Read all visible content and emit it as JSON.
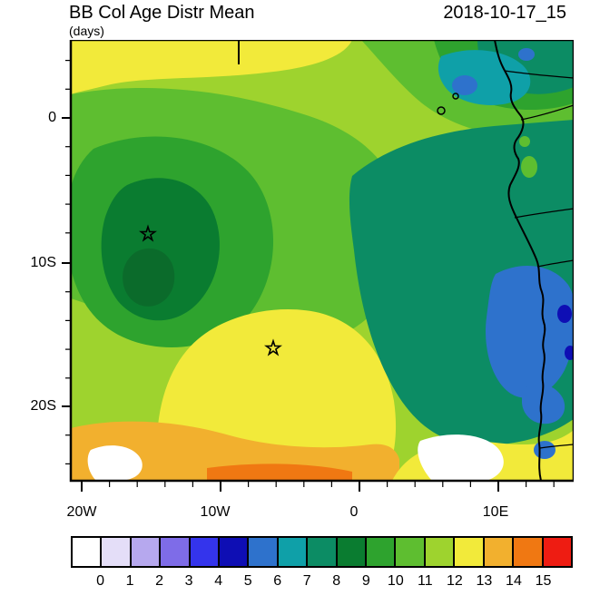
{
  "header": {
    "title": "BB Col Age Distr Mean",
    "units": "(days)",
    "date": "2018-10-17_15"
  },
  "axes": {
    "y_ticks": [
      "0",
      "10S",
      "20S"
    ],
    "x_ticks": [
      "20W",
      "10W",
      "0",
      "10E"
    ]
  },
  "colorbar": {
    "labels": [
      "0",
      "1",
      "2",
      "3",
      "4",
      "5",
      "6",
      "7",
      "8",
      "9",
      "10",
      "11",
      "12",
      "13",
      "14",
      "15"
    ],
    "colors": [
      "#FFFFFF",
      "#E4DEF8",
      "#B6A8EE",
      "#7E6CE8",
      "#3434EC",
      "#0E0EB4",
      "#2E72CC",
      "#0FA0A8",
      "#0C8C64",
      "#0A7C30",
      "#2EA32E",
      "#5EBE30",
      "#9ED32E",
      "#F2EA3A",
      "#F2B02E",
      "#F07812",
      "#EE1C12"
    ]
  },
  "map_colors": {
    "base_yellow_green": "#9ED32E",
    "green_mid": "#5EBE30",
    "green_deep": "#2EA32E",
    "dark_green": "#0A7C30",
    "dark_green_core": "#0B6B2B",
    "teal_green": "#0C8C64",
    "teal": "#0FA0A8",
    "yellow": "#F2EA3A",
    "gold": "#F2B02E",
    "orange": "#F07812",
    "blue_mid": "#2E72CC",
    "blue_dark": "#0E0EB4",
    "white_region": "#FFFFFF"
  },
  "chart_data": {
    "type": "filled_contour_map",
    "title": "BB Col Age Distr Mean",
    "units": "days",
    "timestamp": "2018-10-17_15",
    "x_axis": {
      "ticks": [
        "20W",
        "10W",
        "0",
        "10E"
      ],
      "minor_tick_interval_deg": 2
    },
    "y_axis": {
      "ticks": [
        "0",
        "10S",
        "20S"
      ],
      "minor_tick_interval_deg": 2
    },
    "domain": {
      "lon_range": [
        "about 21W",
        "about 16E"
      ],
      "lat_range": [
        "about 5N",
        "about 25S"
      ]
    },
    "contour_levels": [
      0,
      1,
      2,
      3,
      4,
      5,
      6,
      7,
      8,
      9,
      10,
      11,
      12,
      13,
      14,
      15
    ],
    "palette": [
      "#FFFFFF",
      "#E4DEF8",
      "#B6A8EE",
      "#7E6CE8",
      "#3434EC",
      "#0E0EB4",
      "#2E72CC",
      "#0FA0A8",
      "#0C8C64",
      "#0A7C30",
      "#2EA32E",
      "#5EBE30",
      "#9ED32E",
      "#F2EA3A",
      "#F2B02E",
      "#F07812",
      "#EE1C12"
    ],
    "markers": [
      {
        "symbol": "open-star",
        "approx_lon": "14.5W",
        "approx_lat": "8S"
      },
      {
        "symbol": "open-star",
        "approx_lon": "5.5W",
        "approx_lat": "16S"
      }
    ],
    "regions": [
      {
        "area": "eastern basin off Angola/Congo coast (dark teal-green)",
        "value_days": "7-8"
      },
      {
        "area": "blue patches near and over the coast",
        "value_days": "4-6"
      },
      {
        "area": "eddy feature around 14W, 8S with star (dark green, darker core)",
        "value_days": "8-9"
      },
      {
        "area": "broad central and western basin (green)",
        "value_days": "9-11"
      },
      {
        "area": "northern band near 3-5N and center-south blob near 5W,16S (yellow)",
        "value_days": "11-13"
      },
      {
        "area": "southern band near 22-25S (gold/orange)",
        "value_days": "13-15"
      },
      {
        "area": "small white patches near the southern edge",
        "value_days": "0-1 / none"
      }
    ],
    "geography": [
      "West African coastline outlined in black",
      "country borders as thin black lines",
      "Sao Tome and Principe island outlines",
      "short black segment at top edge near 8W"
    ]
  }
}
